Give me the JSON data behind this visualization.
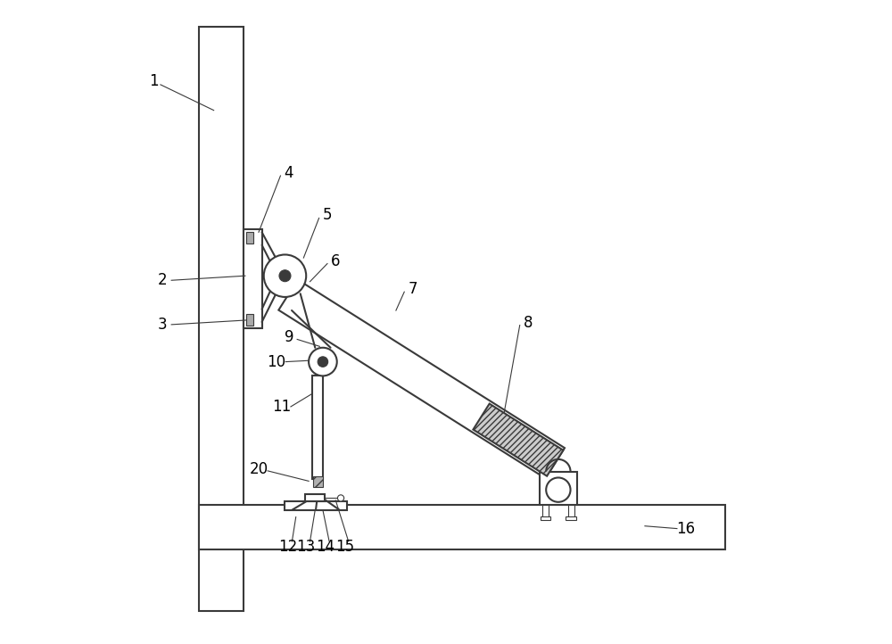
{
  "bg_color": "#ffffff",
  "line_color": "#3a3a3a",
  "line_width": 1.5,
  "thin_line": 0.8,
  "fig_width": 10.0,
  "fig_height": 7.22
}
